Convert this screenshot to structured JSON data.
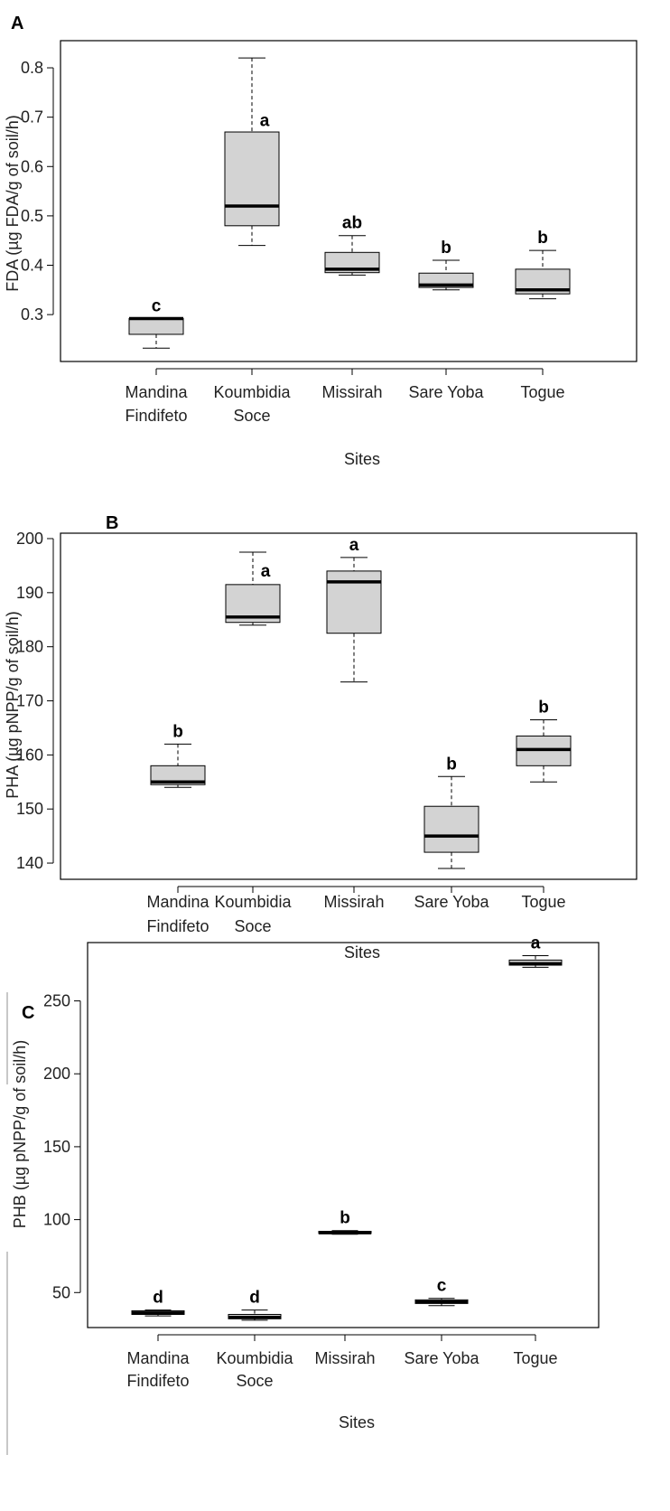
{
  "colors": {
    "box_fill": "#d3d3d3",
    "line": "#000000",
    "frame": "#000000"
  },
  "chart_data": [
    {
      "panel": "A",
      "type": "boxplot",
      "xlabel": "Sites",
      "ylabel": "FDA (µg FDA/g of soil/h)",
      "categories": [
        [
          "Mandina",
          "Findifeto"
        ],
        [
          "Koumbidia",
          "Soce"
        ],
        [
          "Missirah"
        ],
        [
          "Sare Yoba"
        ],
        [
          "Togue"
        ]
      ],
      "ylim": [
        0.205,
        0.855
      ],
      "yticks": [
        "0.3",
        "0.4",
        "0.5",
        "0.6",
        "0.7",
        "0.8"
      ],
      "boxes": [
        {
          "min": 0.232,
          "q1": 0.26,
          "median": 0.292,
          "q3": 0.292,
          "max": 0.292,
          "letter": "c"
        },
        {
          "min": 0.44,
          "q1": 0.48,
          "median": 0.52,
          "q3": 0.67,
          "max": 0.82,
          "letter": "a"
        },
        {
          "min": 0.38,
          "q1": 0.385,
          "median": 0.392,
          "q3": 0.426,
          "max": 0.46,
          "letter": "ab"
        },
        {
          "min": 0.35,
          "q1": 0.355,
          "median": 0.36,
          "q3": 0.384,
          "max": 0.41,
          "letter": "b"
        },
        {
          "min": 0.332,
          "q1": 0.342,
          "median": 0.35,
          "q3": 0.392,
          "max": 0.43,
          "letter": "b"
        }
      ]
    },
    {
      "panel": "B",
      "type": "boxplot",
      "xlabel": "Sites",
      "ylabel": "PHA (µg pNPP/g of soil/h)",
      "categories": [
        [
          "Mandina",
          "Findifeto"
        ],
        [
          "Koumbidia",
          "Soce"
        ],
        [
          "Missirah"
        ],
        [
          "Sare Yoba"
        ],
        [
          "Togue"
        ]
      ],
      "ylim": [
        137,
        201
      ],
      "yticks": [
        "140",
        "150",
        "160",
        "170",
        "180",
        "190",
        "200"
      ],
      "boxes": [
        {
          "min": 154,
          "q1": 154.5,
          "median": 155,
          "q3": 158,
          "max": 162,
          "letter": "b"
        },
        {
          "min": 184,
          "q1": 184.5,
          "median": 185.5,
          "q3": 191.5,
          "max": 197.5,
          "letter": "a"
        },
        {
          "min": 173.5,
          "q1": 182.5,
          "median": 192,
          "q3": 194,
          "max": 196.5,
          "letter": "a"
        },
        {
          "min": 139,
          "q1": 142,
          "median": 145,
          "q3": 150.5,
          "max": 156,
          "letter": "b"
        },
        {
          "min": 155,
          "q1": 158,
          "median": 161,
          "q3": 163.5,
          "max": 166.5,
          "letter": "b"
        }
      ]
    },
    {
      "panel": "C",
      "type": "boxplot",
      "xlabel": "Sites",
      "ylabel": "PHB (µg pNPP/g of soil/h)",
      "categories": [
        [
          "Mandina",
          "Findifeto"
        ],
        [
          "Koumbidia",
          "Soce"
        ],
        [
          "Missirah"
        ],
        [
          "Sare Yoba"
        ],
        [
          "Togue"
        ]
      ],
      "ylim": [
        26,
        290
      ],
      "yticks": [
        "50",
        "100",
        "150",
        "200",
        "250"
      ],
      "boxes": [
        {
          "min": 34,
          "q1": 35,
          "median": 36,
          "q3": 37.5,
          "max": 38,
          "letter": "d"
        },
        {
          "min": 31,
          "q1": 32,
          "median": 33,
          "q3": 35,
          "max": 38,
          "letter": "d"
        },
        {
          "min": 90,
          "q1": 90.5,
          "median": 91,
          "q3": 92,
          "max": 92.5,
          "letter": "b"
        },
        {
          "min": 41,
          "q1": 42.5,
          "median": 43.5,
          "q3": 45,
          "max": 46,
          "letter": "c"
        },
        {
          "min": 273,
          "q1": 274.5,
          "median": 275.5,
          "q3": 278,
          "max": 281,
          "letter": "a"
        }
      ]
    }
  ]
}
